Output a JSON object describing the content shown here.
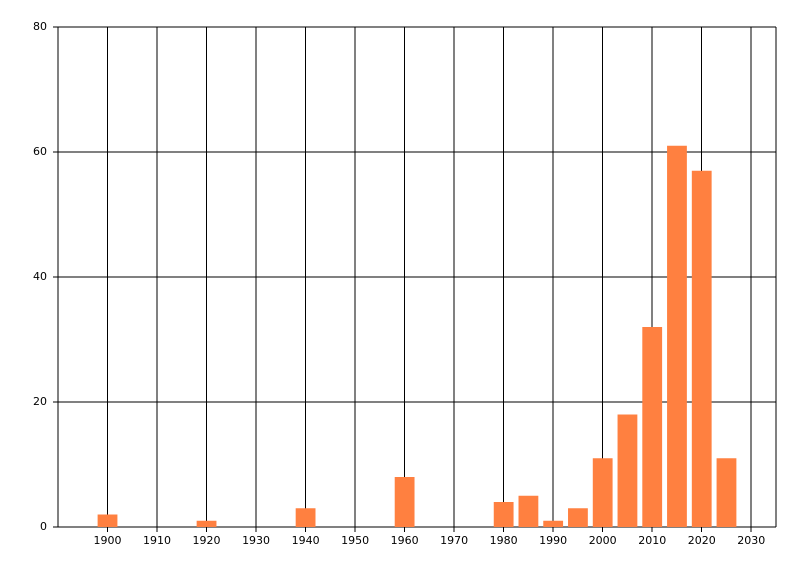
{
  "chart_data": {
    "type": "bar",
    "x": [
      1900,
      1920,
      1940,
      1960,
      1980,
      1985,
      1990,
      1995,
      2000,
      2005,
      2010,
      2015,
      2020,
      2025
    ],
    "values": [
      2,
      1,
      3,
      8,
      4,
      5,
      1,
      3,
      11,
      18,
      32,
      61,
      57,
      11
    ],
    "color": "#ff8040",
    "xlim": [
      1890,
      2035
    ],
    "xticks": [
      1900,
      1910,
      1920,
      1930,
      1940,
      1950,
      1960,
      1970,
      1980,
      1990,
      2000,
      2010,
      2020,
      2030
    ],
    "ylim": [
      0,
      80
    ],
    "yticks": [
      0,
      20,
      40,
      60,
      80
    ],
    "grid": true
  }
}
